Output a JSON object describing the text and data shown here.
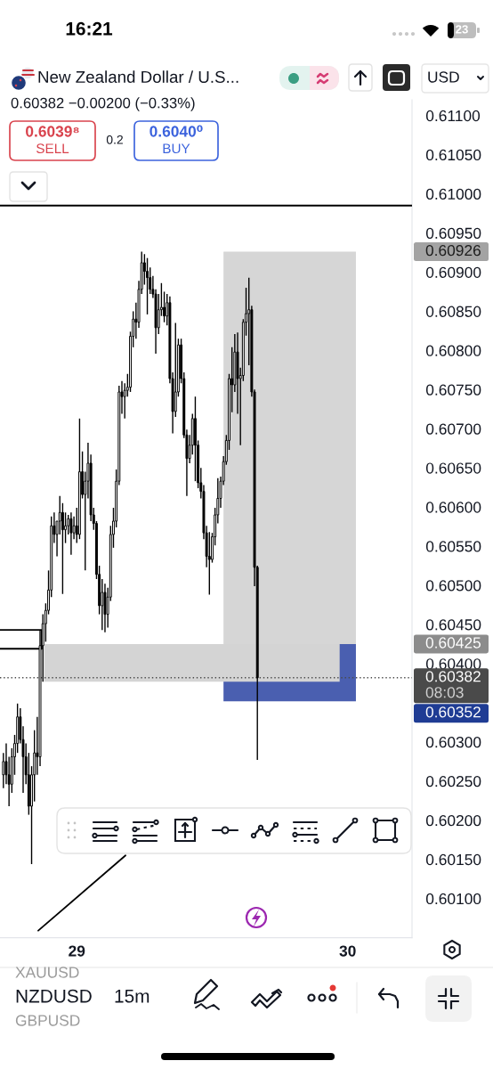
{
  "chart_data": {
    "type": "candlestick",
    "title": "New Zealand Dollar / U.S...",
    "subtitle": "0.60382 −0.00200 (−0.33%)",
    "annotations": [
      "16:21",
      "23",
      "USD",
      "0.6039⁸",
      "SELL",
      "0.2",
      "0.6040⁰",
      "BUY",
      "XAUUSD",
      "NZDUSD",
      "GBPUSD",
      "15m",
      "0.60926",
      "0.60425",
      "0.60352"
    ],
    "color": "#000000",
    "x": [
      28.72917,
      28.73958,
      28.75,
      28.76042,
      28.77083,
      28.78125,
      28.79167,
      28.80208,
      28.8125,
      28.82292,
      28.83333,
      28.84375,
      28.85417,
      28.86458,
      28.875,
      28.88542,
      28.89583,
      28.90625,
      28.91667,
      28.92708,
      28.9375,
      28.94792,
      28.95833,
      28.96875,
      28.97917,
      28.98958,
      29,
      29.01042,
      29.02083,
      29.03125,
      29.04167,
      29.05208,
      29.0625,
      29.07292,
      29.08333,
      29.09375,
      29.10417,
      29.11458,
      29.125,
      29.13542,
      29.14583,
      29.15625,
      29.16667,
      29.17708,
      29.1875,
      29.19792,
      29.20833,
      29.21875,
      29.22917,
      29.23958,
      29.25,
      29.26042,
      29.27083,
      29.28125,
      29.29167,
      29.30208,
      29.3125,
      29.32292,
      29.33333,
      29.34375,
      29.35417,
      29.36458,
      29.375,
      29.38542,
      29.39583,
      29.40625,
      29.41667,
      29.42708,
      29.4375,
      29.44792,
      29.45833,
      29.46875,
      29.47917,
      29.48958,
      29.5,
      29.51042,
      29.52083,
      29.53125,
      29.54167,
      29.55208,
      29.5625,
      29.57292,
      29.58333,
      29.59375,
      29.60417,
      29.61458,
      29.625,
      29.63542,
      29.64583,
      29.65625,
      29.66667
    ],
    "ohlc": [
      [
        0.60258,
        0.60286,
        0.60241,
        0.60275
      ],
      [
        0.60275,
        0.60298,
        0.60246,
        0.60258
      ],
      [
        0.60258,
        0.60281,
        0.60218,
        0.60246
      ],
      [
        0.60246,
        0.60292,
        0.60235,
        0.60281
      ],
      [
        0.60281,
        0.60309,
        0.60258,
        0.60298
      ],
      [
        0.60298,
        0.60349,
        0.60286,
        0.60332
      ],
      [
        0.60332,
        0.60343,
        0.60298,
        0.60303
      ],
      [
        0.60303,
        0.6032,
        0.60235,
        0.60281
      ],
      [
        0.60281,
        0.60298,
        0.60246,
        0.60258
      ],
      [
        0.60258,
        0.60286,
        0.60207,
        0.60218
      ],
      [
        0.60218,
        0.60269,
        0.60144,
        0.60258
      ],
      [
        0.60258,
        0.60315,
        0.60224,
        0.60286
      ],
      [
        0.60286,
        0.60332,
        0.60258,
        0.60281
      ],
      [
        0.60281,
        0.60443,
        0.60269,
        0.60423
      ],
      [
        0.60423,
        0.60463,
        0.60377,
        0.60451
      ],
      [
        0.60451,
        0.60477,
        0.60428,
        0.60468
      ],
      [
        0.60468,
        0.60519,
        0.60463,
        0.60494
      ],
      [
        0.60494,
        0.60588,
        0.60485,
        0.60576
      ],
      [
        0.60576,
        0.60593,
        0.60554,
        0.60565
      ],
      [
        0.60565,
        0.60582,
        0.60537,
        0.60582
      ],
      [
        0.60582,
        0.60614,
        0.60565,
        0.60593
      ],
      [
        0.60593,
        0.60605,
        0.60489,
        0.60571
      ],
      [
        0.60571,
        0.60593,
        0.60554,
        0.60576
      ],
      [
        0.60576,
        0.6059,
        0.60565,
        0.60585
      ],
      [
        0.60585,
        0.60593,
        0.60539,
        0.60567
      ],
      [
        0.60567,
        0.60588,
        0.60559,
        0.60576
      ],
      [
        0.60576,
        0.60599,
        0.60554,
        0.60565
      ],
      [
        0.60565,
        0.60713,
        0.60559,
        0.60645
      ],
      [
        0.60645,
        0.60671,
        0.60611,
        0.60616
      ],
      [
        0.60616,
        0.60645,
        0.60519,
        0.60633
      ],
      [
        0.60633,
        0.60682,
        0.60611,
        0.60656
      ],
      [
        0.60656,
        0.60667,
        0.60582,
        0.6059
      ],
      [
        0.6059,
        0.60599,
        0.60571,
        0.60579
      ],
      [
        0.60579,
        0.60582,
        0.60508,
        0.60514
      ],
      [
        0.60514,
        0.60525,
        0.60463,
        0.60474
      ],
      [
        0.60474,
        0.60508,
        0.60443,
        0.60491
      ],
      [
        0.60491,
        0.60502,
        0.6044,
        0.60463
      ],
      [
        0.60463,
        0.60497,
        0.60446,
        0.60485
      ],
      [
        0.60485,
        0.60576,
        0.6048,
        0.60565
      ],
      [
        0.60565,
        0.60599,
        0.60548,
        0.60582
      ],
      [
        0.60582,
        0.60648,
        0.60574,
        0.60633
      ],
      [
        0.60633,
        0.60755,
        0.60628,
        0.60747
      ],
      [
        0.60747,
        0.60761,
        0.60719,
        0.60741
      ],
      [
        0.60741,
        0.60758,
        0.60713,
        0.60749
      ],
      [
        0.60749,
        0.6077,
        0.60741,
        0.60753
      ],
      [
        0.60753,
        0.60824,
        0.60747,
        0.60818
      ],
      [
        0.60818,
        0.6085,
        0.60804,
        0.6084
      ],
      [
        0.6084,
        0.60861,
        0.60815,
        0.60836
      ],
      [
        0.60836,
        0.60889,
        0.60829,
        0.60878
      ],
      [
        0.60878,
        0.60926,
        0.60872,
        0.60912
      ],
      [
        0.60912,
        0.60923,
        0.60884,
        0.60901
      ],
      [
        0.60901,
        0.60918,
        0.60846,
        0.60893
      ],
      [
        0.60893,
        0.60906,
        0.60872,
        0.60878
      ],
      [
        0.60878,
        0.60895,
        0.60867,
        0.60872
      ],
      [
        0.60872,
        0.60878,
        0.60796,
        0.60829
      ],
      [
        0.60829,
        0.60872,
        0.60821,
        0.60852
      ],
      [
        0.60852,
        0.60886,
        0.60844,
        0.60855
      ],
      [
        0.60855,
        0.60875,
        0.60836,
        0.60844
      ],
      [
        0.60844,
        0.60872,
        0.60832,
        0.60861
      ],
      [
        0.60861,
        0.60869,
        0.60758,
        0.60764
      ],
      [
        0.60764,
        0.60772,
        0.60694,
        0.60722
      ],
      [
        0.60722,
        0.60835,
        0.60715,
        0.60747
      ],
      [
        0.60747,
        0.60815,
        0.60741,
        0.60807
      ],
      [
        0.60807,
        0.60815,
        0.60758,
        0.60764
      ],
      [
        0.60764,
        0.60772,
        0.60688,
        0.60692
      ],
      [
        0.60692,
        0.60699,
        0.60614,
        0.60662
      ],
      [
        0.60662,
        0.60692,
        0.60656,
        0.60679
      ],
      [
        0.60679,
        0.60719,
        0.60667,
        0.60713
      ],
      [
        0.60713,
        0.60741,
        0.60633,
        0.60679
      ],
      [
        0.60679,
        0.60685,
        0.60624,
        0.60631
      ],
      [
        0.60631,
        0.6065,
        0.60611,
        0.6062
      ],
      [
        0.6062,
        0.60628,
        0.60559,
        0.60567
      ],
      [
        0.60567,
        0.60576,
        0.60523,
        0.60537
      ],
      [
        0.60537,
        0.60568,
        0.60488,
        0.60533
      ],
      [
        0.60533,
        0.60567,
        0.60529,
        0.60562
      ],
      [
        0.60562,
        0.60599,
        0.60551,
        0.6059
      ],
      [
        0.6059,
        0.60637,
        0.60579,
        0.60611
      ],
      [
        0.60611,
        0.60639,
        0.60599,
        0.60633
      ],
      [
        0.60633,
        0.60665,
        0.60628,
        0.60658
      ],
      [
        0.60658,
        0.60692,
        0.60654,
        0.60685
      ],
      [
        0.60685,
        0.6077,
        0.60673,
        0.60764
      ],
      [
        0.60764,
        0.60804,
        0.60721,
        0.60756
      ],
      [
        0.60756,
        0.60821,
        0.60747,
        0.60798
      ],
      [
        0.60798,
        0.60823,
        0.60719,
        0.60764
      ],
      [
        0.60764,
        0.60778,
        0.60679,
        0.60768
      ],
      [
        0.60768,
        0.6084,
        0.60761,
        0.60836
      ],
      [
        0.60836,
        0.6088,
        0.60819,
        0.60847
      ],
      [
        0.60847,
        0.60893,
        0.60781,
        0.60852
      ],
      [
        0.60852,
        0.60857,
        0.60741,
        0.60747
      ],
      [
        0.60747,
        0.6075,
        0.60499,
        0.60523
      ],
      [
        0.60523,
        0.60525,
        0.60277,
        0.60382
      ]
    ],
    "series": [
      {
        "type": "line",
        "x": [
          29.54167,
          30.03042
        ],
        "values": [
          null,
          null
        ],
        "lower": [
          0.60425,
          0.60425
        ],
        "upper": [
          0.60926,
          0.60926
        ],
        "color": "#d6d6d6"
      },
      {
        "type": "line",
        "x": [
          29.54167,
          30.03042
        ],
        "values": [
          null,
          null
        ],
        "lower": [
          0.60352,
          0.60352
        ],
        "upper": [
          0.60425,
          0.60425
        ],
        "color": "#4a5fb0"
      },
      {
        "type": "line",
        "x": [
          28.87917,
          29.97042
        ],
        "values": [
          null,
          null
        ],
        "lower": [
          0.60377,
          0.60377
        ],
        "upper": [
          0.60425,
          0.60425
        ],
        "color": "#d4d4d4"
      },
      {
        "type": "line",
        "x": [
          28.71667,
          28.87083,
          28.87083,
          28.71667
        ],
        "values": [
          0.60443,
          0.60443,
          0.60419,
          0.60419
        ],
        "color": "#000000"
      },
      {
        "type": "line",
        "x": [
          28.85792,
          29.18
        ],
        "values": [
          0.60059,
          0.60155
        ],
        "color": "#000000"
      }
    ],
    "ref_lines": [
      {
        "axis": "y",
        "value": 0.60382,
        "label": "0.60382\n08:03",
        "color": "#4a4a4a",
        "line_style": "dotted"
      },
      {
        "axis": "y",
        "value": 0.60985,
        "color": "#000000",
        "line_style": "solid"
      }
    ],
    "xlim": [
      28.71667,
      30.2375
    ],
    "xticks": [
      29,
      30
    ],
    "ylim": [
      0.6005,
      0.6112
    ],
    "yticks": [
      {
        "value": 0.611,
        "label": "0.61100"
      },
      {
        "value": 0.6105,
        "label": "0.61050"
      },
      {
        "value": 0.61,
        "label": "0.61000"
      },
      {
        "value": 0.6095,
        "label": "0.60950"
      },
      {
        "value": 0.609,
        "label": "0.60900"
      },
      {
        "value": 0.6085,
        "label": "0.60850"
      },
      {
        "value": 0.608,
        "label": "0.60800"
      },
      {
        "value": 0.6075,
        "label": "0.60750"
      },
      {
        "value": 0.607,
        "label": "0.60700"
      },
      {
        "value": 0.6065,
        "label": "0.60650"
      },
      {
        "value": 0.606,
        "label": "0.60600"
      },
      {
        "value": 0.6055,
        "label": "0.60550"
      },
      {
        "value": 0.605,
        "label": "0.60500"
      },
      {
        "value": 0.6045,
        "label": "0.60450"
      },
      {
        "value": 0.604,
        "label": "0.60400"
      },
      {
        "value": 0.603,
        "label": "0.60300"
      },
      {
        "value": 0.6025,
        "label": "0.60250"
      },
      {
        "value": 0.602,
        "label": "0.60200"
      },
      {
        "value": 0.6015,
        "label": "0.60150"
      },
      {
        "value": 0.601,
        "label": "0.60100"
      }
    ]
  }
}
